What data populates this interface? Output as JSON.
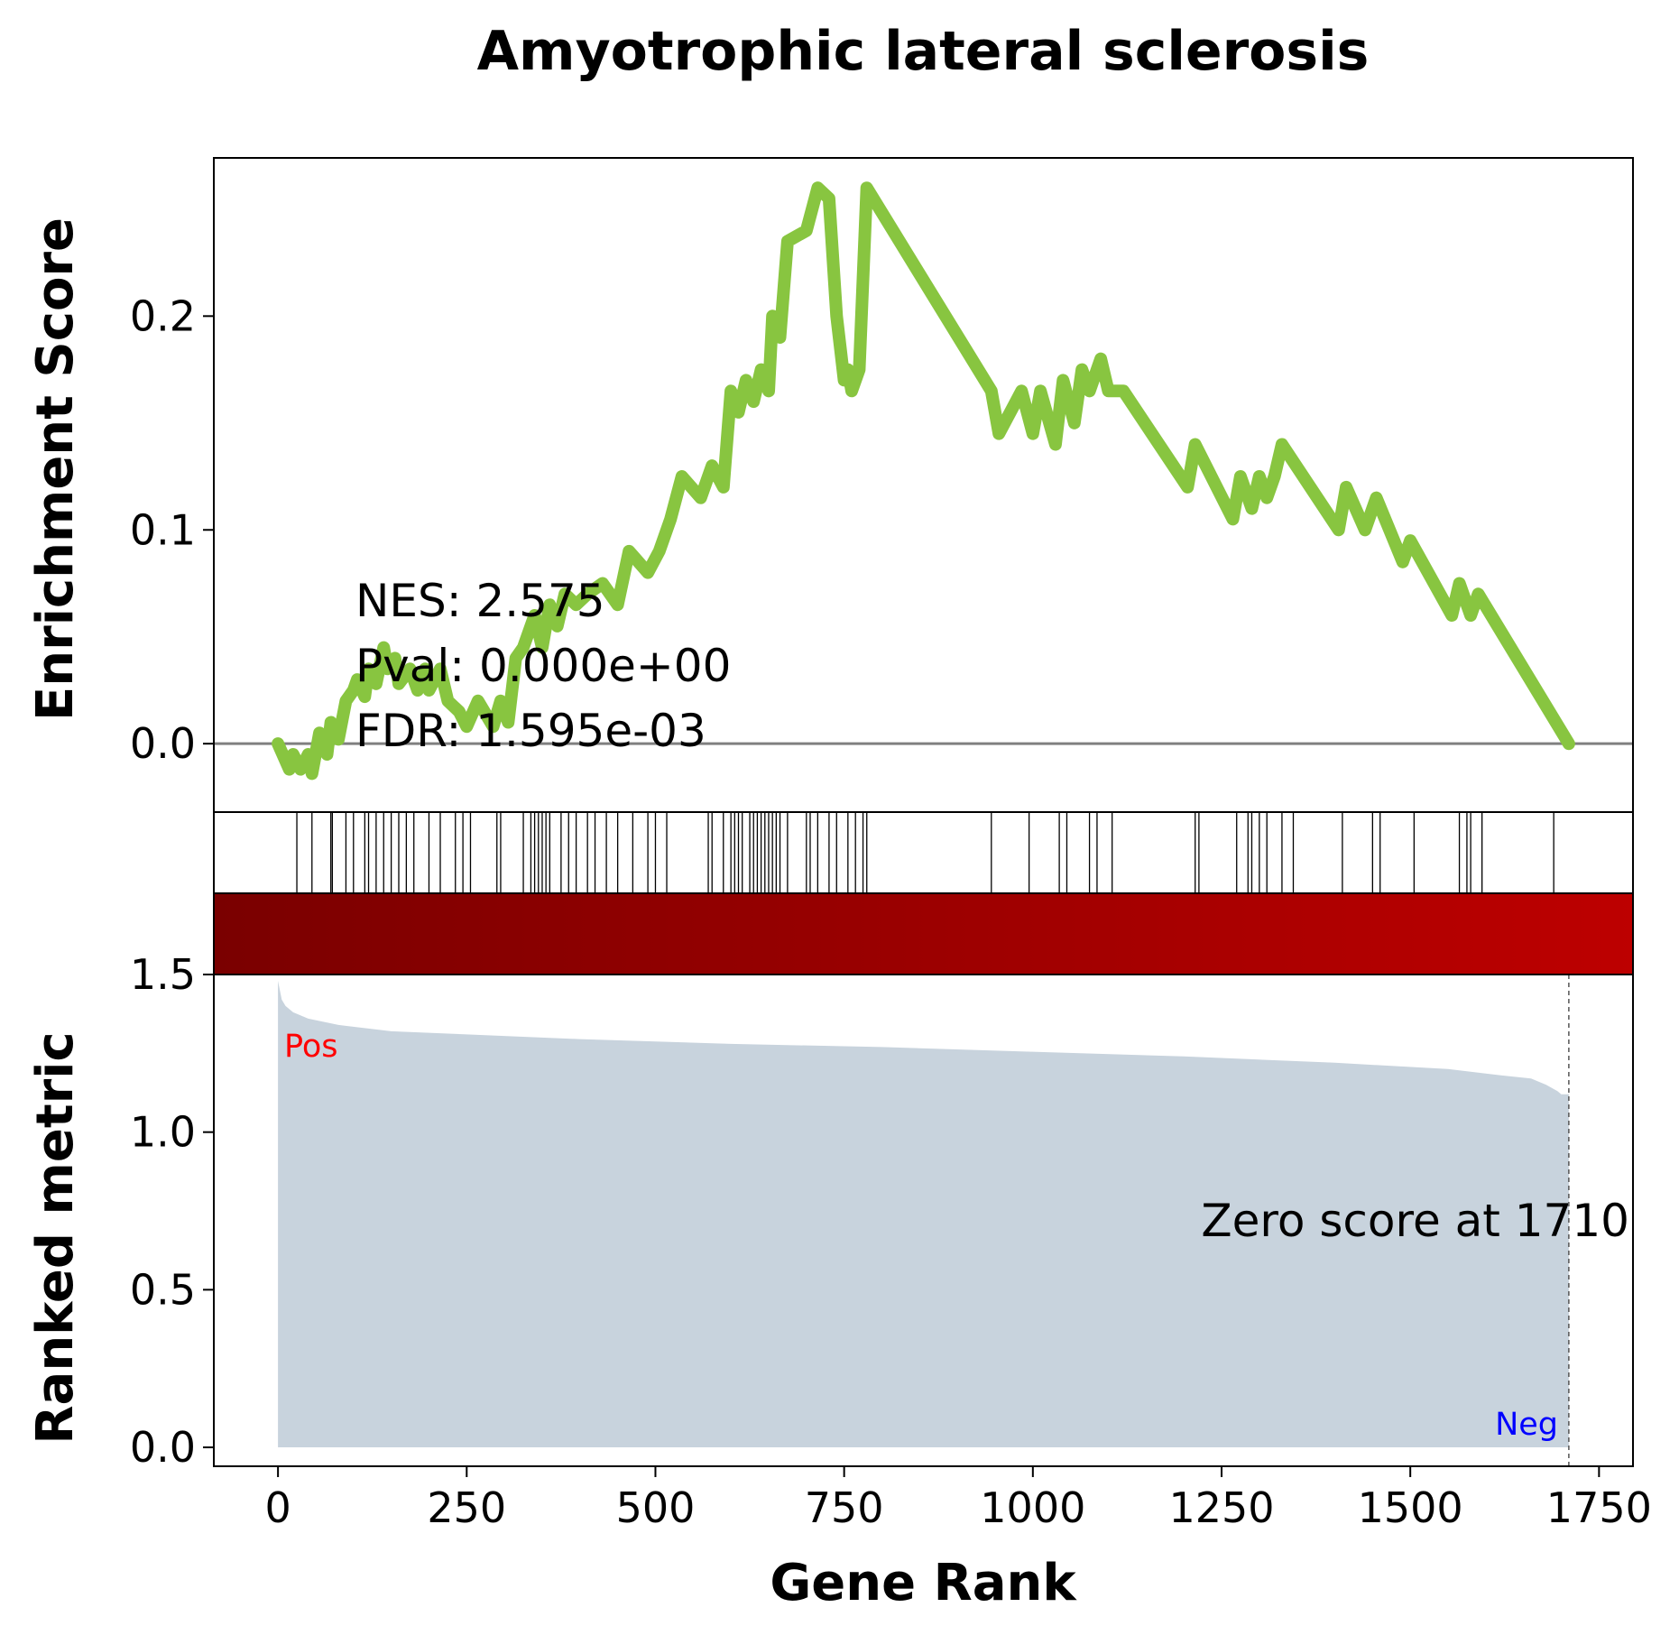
{
  "chart_data": {
    "type": "line",
    "title": "Amyotrophic lateral sclerosis",
    "xlabel": "Gene Rank",
    "ylabel_top": "Enrichment Score",
    "ylabel_bottom": "Ranked metric",
    "xlim": [
      -85,
      1795
    ],
    "x_ticks": [
      0,
      250,
      500,
      750,
      1000,
      1250,
      1500,
      1750
    ],
    "x_tick_labels": [
      "0",
      "250",
      "500",
      "750",
      "1000",
      "1250",
      "1500",
      "1750"
    ],
    "es_ylim": [
      -0.032,
      0.274
    ],
    "es_ticks": [
      0.0,
      0.1,
      0.2
    ],
    "es_tick_labels": [
      "0.0",
      "0.1",
      "0.2"
    ],
    "metric_ylim": [
      -0.06,
      1.5
    ],
    "metric_ticks": [
      0.0,
      0.5,
      1.0,
      1.5
    ],
    "metric_tick_labels": [
      "0.0",
      "0.5",
      "1.0",
      "1.5"
    ],
    "stats": {
      "nes": "NES: 2.575",
      "pval": "Pval: 0.000e+00",
      "fdr": "FDR: 1.595e-03"
    },
    "zero_score_label": "Zero score at 1710",
    "zero_score_rank": 1710,
    "pos_label": "Pos",
    "neg_label": "Neg",
    "enrichment_curve": {
      "x": [
        0,
        15,
        20,
        30,
        40,
        45,
        55,
        65,
        70,
        80,
        90,
        100,
        105,
        115,
        120,
        130,
        140,
        145,
        155,
        160,
        175,
        185,
        195,
        200,
        215,
        225,
        240,
        250,
        265,
        285,
        295,
        305,
        315,
        325,
        330,
        340,
        350,
        360,
        370,
        380,
        395,
        410,
        430,
        450,
        465,
        490,
        505,
        520,
        535,
        560,
        575,
        590,
        600,
        610,
        620,
        630,
        640,
        650,
        655,
        665,
        675,
        700,
        715,
        730,
        740,
        750,
        755,
        760,
        770,
        780,
        945,
        955,
        985,
        1000,
        1010,
        1030,
        1040,
        1055,
        1065,
        1075,
        1090,
        1100,
        1120,
        1205,
        1215,
        1265,
        1275,
        1290,
        1300,
        1310,
        1320,
        1330,
        1405,
        1415,
        1440,
        1455,
        1490,
        1500,
        1555,
        1565,
        1580,
        1590,
        1710
      ],
      "y": [
        0.0,
        -0.012,
        -0.005,
        -0.012,
        -0.005,
        -0.014,
        0.005,
        -0.005,
        0.01,
        0.002,
        0.02,
        0.025,
        0.03,
        0.022,
        0.035,
        0.028,
        0.045,
        0.035,
        0.04,
        0.028,
        0.035,
        0.025,
        0.035,
        0.025,
        0.035,
        0.02,
        0.015,
        0.008,
        0.02,
        0.008,
        0.02,
        0.01,
        0.04,
        0.045,
        0.05,
        0.06,
        0.045,
        0.065,
        0.055,
        0.07,
        0.065,
        0.07,
        0.075,
        0.065,
        0.09,
        0.08,
        0.09,
        0.105,
        0.125,
        0.115,
        0.13,
        0.12,
        0.165,
        0.155,
        0.17,
        0.16,
        0.175,
        0.165,
        0.2,
        0.19,
        0.235,
        0.24,
        0.26,
        0.255,
        0.2,
        0.17,
        0.175,
        0.165,
        0.175,
        0.26,
        0.165,
        0.145,
        0.165,
        0.145,
        0.165,
        0.14,
        0.17,
        0.15,
        0.175,
        0.165,
        0.18,
        0.165,
        0.165,
        0.12,
        0.14,
        0.105,
        0.125,
        0.11,
        0.125,
        0.115,
        0.125,
        0.14,
        0.1,
        0.12,
        0.1,
        0.115,
        0.085,
        0.095,
        0.06,
        0.075,
        0.06,
        0.07,
        0.0
      ]
    },
    "hits": [
      25,
      45,
      70,
      72,
      90,
      100,
      115,
      120,
      130,
      140,
      150,
      160,
      170,
      180,
      200,
      215,
      235,
      245,
      255,
      290,
      295,
      325,
      335,
      340,
      345,
      350,
      355,
      360,
      375,
      385,
      395,
      410,
      420,
      435,
      450,
      470,
      490,
      500,
      515,
      570,
      575,
      590,
      600,
      605,
      610,
      615,
      625,
      630,
      635,
      640,
      645,
      650,
      655,
      660,
      665,
      675,
      700,
      705,
      715,
      730,
      740,
      755,
      765,
      775,
      780,
      945,
      995,
      1035,
      1045,
      1075,
      1085,
      1105,
      1215,
      1220,
      1270,
      1285,
      1290,
      1300,
      1310,
      1330,
      1345,
      1410,
      1450,
      1460,
      1505,
      1565,
      1575,
      1580,
      1595,
      1690
    ],
    "metric_curve": {
      "x": [
        0,
        5,
        10,
        20,
        40,
        80,
        150,
        250,
        400,
        600,
        800,
        1000,
        1200,
        1400,
        1550,
        1620,
        1660,
        1680,
        1695,
        1700,
        1710
      ],
      "y": [
        1.48,
        1.42,
        1.4,
        1.38,
        1.36,
        1.34,
        1.32,
        1.31,
        1.295,
        1.28,
        1.27,
        1.255,
        1.24,
        1.22,
        1.2,
        1.18,
        1.17,
        1.15,
        1.13,
        1.12,
        1.12
      ]
    },
    "colors": {
      "curve": "#88c540",
      "zero_line": "#808080",
      "fill": "#c8d3dd",
      "heat_start": "#7a0000",
      "heat_end": "#bd0000",
      "pos": "#ff0000",
      "neg": "#0000ff"
    }
  }
}
